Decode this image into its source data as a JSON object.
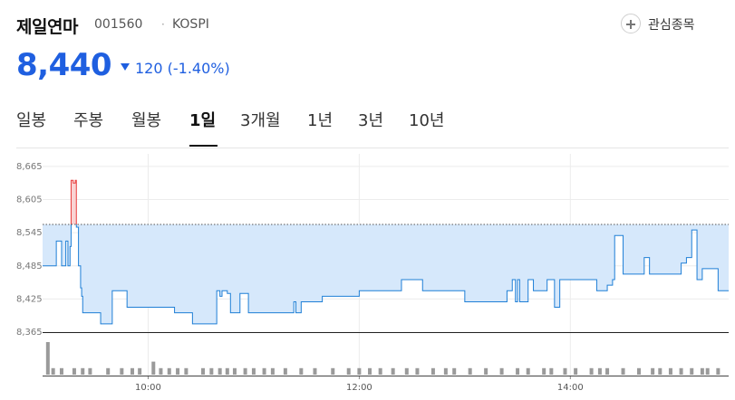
{
  "header": {
    "name": "제일연마",
    "code": "001560",
    "separator": "·",
    "market": "KOSPI",
    "watch_label": "관심종목"
  },
  "quote": {
    "price": "8,440",
    "change": "120 (-1.40%)",
    "direction": "down",
    "color": "#1f5fe0"
  },
  "tabs": [
    {
      "label": "일봉",
      "active": false
    },
    {
      "label": "주봉",
      "active": false
    },
    {
      "label": "월봉",
      "active": false
    },
    {
      "label": "1일",
      "active": true
    },
    {
      "label": "3개월",
      "active": false
    },
    {
      "label": "1년",
      "active": false
    },
    {
      "label": "3년",
      "active": false
    },
    {
      "label": "10년",
      "active": false
    }
  ],
  "chart_data": {
    "type": "line",
    "title": "",
    "xlabel": "",
    "ylabel": "",
    "prev_close": 8560,
    "ylim": [
      8365,
      8678
    ],
    "xlim": [
      9.0,
      15.5
    ],
    "y_ticks": [
      8665,
      8605,
      8545,
      8485,
      8425,
      8365
    ],
    "y_tick_labels": [
      "8,665",
      "8,605",
      "8,545",
      "8,485",
      "8,425",
      "8,365"
    ],
    "x_ticks": [
      10,
      12,
      14
    ],
    "x_tick_labels": [
      "10:00",
      "12:00",
      "14:00"
    ],
    "colors": {
      "up": "#e83c3c",
      "down": "#1f7fd6",
      "fill_down": "#d6e8fb",
      "fill_up": "#f9d3d3",
      "volume": "#9a9a9a"
    },
    "grid": true,
    "price_series": {
      "x": [
        9.0,
        9.12,
        9.13,
        9.16,
        9.18,
        9.2,
        9.22,
        9.24,
        9.26,
        9.27,
        9.29,
        9.31,
        9.32,
        9.34,
        9.36,
        9.37,
        9.38,
        9.4,
        9.42,
        9.5,
        9.55,
        9.63,
        9.66,
        9.75,
        9.8,
        9.9,
        9.95,
        10.15,
        10.25,
        10.4,
        10.42,
        10.6,
        10.65,
        10.68,
        10.7,
        10.75,
        10.78,
        10.82,
        10.87,
        10.95,
        11.3,
        11.38,
        11.4,
        11.45,
        11.55,
        11.65,
        11.75,
        12.0,
        12.2,
        12.4,
        12.45,
        12.6,
        12.8,
        12.9,
        13.0,
        13.35,
        13.4,
        13.45,
        13.48,
        13.5,
        13.52,
        13.55,
        13.6,
        13.65,
        13.78,
        13.8,
        13.85,
        13.9,
        13.95,
        14.0,
        14.2,
        14.25,
        14.33,
        14.35,
        14.38,
        14.4,
        14.42,
        14.5,
        14.55,
        14.6,
        14.7,
        14.75,
        14.8,
        14.85,
        14.9,
        14.95,
        15.0,
        15.05,
        15.1,
        15.15,
        15.2,
        15.25,
        15.3,
        15.4,
        15.5
      ],
      "y": [
        8485,
        8485,
        8530,
        8530,
        8485,
        8485,
        8530,
        8485,
        8520,
        8640,
        8635,
        8640,
        8555,
        8485,
        8445,
        8430,
        8400,
        8400,
        8400,
        8400,
        8380,
        8380,
        8440,
        8440,
        8410,
        8410,
        8410,
        8410,
        8400,
        8400,
        8380,
        8380,
        8440,
        8430,
        8440,
        8435,
        8400,
        8400,
        8435,
        8400,
        8400,
        8420,
        8400,
        8420,
        8420,
        8430,
        8430,
        8440,
        8440,
        8460,
        8460,
        8440,
        8440,
        8440,
        8420,
        8420,
        8440,
        8460,
        8420,
        8460,
        8420,
        8420,
        8460,
        8440,
        8460,
        8460,
        8410,
        8460,
        8460,
        8460,
        8460,
        8440,
        8440,
        8450,
        8450,
        8460,
        8540,
        8470,
        8470,
        8470,
        8500,
        8470,
        8470,
        8470,
        8470,
        8470,
        8470,
        8490,
        8500,
        8550,
        8460,
        8480,
        8480,
        8440,
        8440
      ]
    },
    "volume_x": [
      9.05,
      9.1,
      9.18,
      9.3,
      9.38,
      9.45,
      9.62,
      9.75,
      9.85,
      9.92,
      10.05,
      10.12,
      10.2,
      10.28,
      10.36,
      10.52,
      10.6,
      10.68,
      10.75,
      10.82,
      10.92,
      11.0,
      11.1,
      11.18,
      11.3,
      11.45,
      11.58,
      11.75,
      11.9,
      12.0,
      12.1,
      12.2,
      12.32,
      12.45,
      12.55,
      12.7,
      12.82,
      12.9,
      13.05,
      13.2,
      13.35,
      13.5,
      13.6,
      13.75,
      13.82,
      13.95,
      14.05,
      14.2,
      14.28,
      14.35,
      14.5,
      14.65,
      14.78,
      14.85,
      14.95,
      15.05,
      15.15,
      15.25,
      15.3,
      15.4
    ],
    "volume": [
      5,
      1,
      1,
      1,
      1,
      1,
      1,
      1,
      1,
      1,
      2,
      1,
      1,
      1,
      1,
      1,
      1,
      1,
      1,
      1,
      1,
      1,
      1,
      1,
      1,
      1,
      1,
      1,
      1,
      1,
      1,
      1,
      1,
      1,
      1,
      1,
      1,
      1,
      1,
      1,
      1,
      1,
      1,
      1,
      1,
      1,
      1,
      1,
      1,
      1,
      1,
      1,
      1,
      1,
      1,
      1,
      1,
      1,
      1,
      1
    ]
  }
}
